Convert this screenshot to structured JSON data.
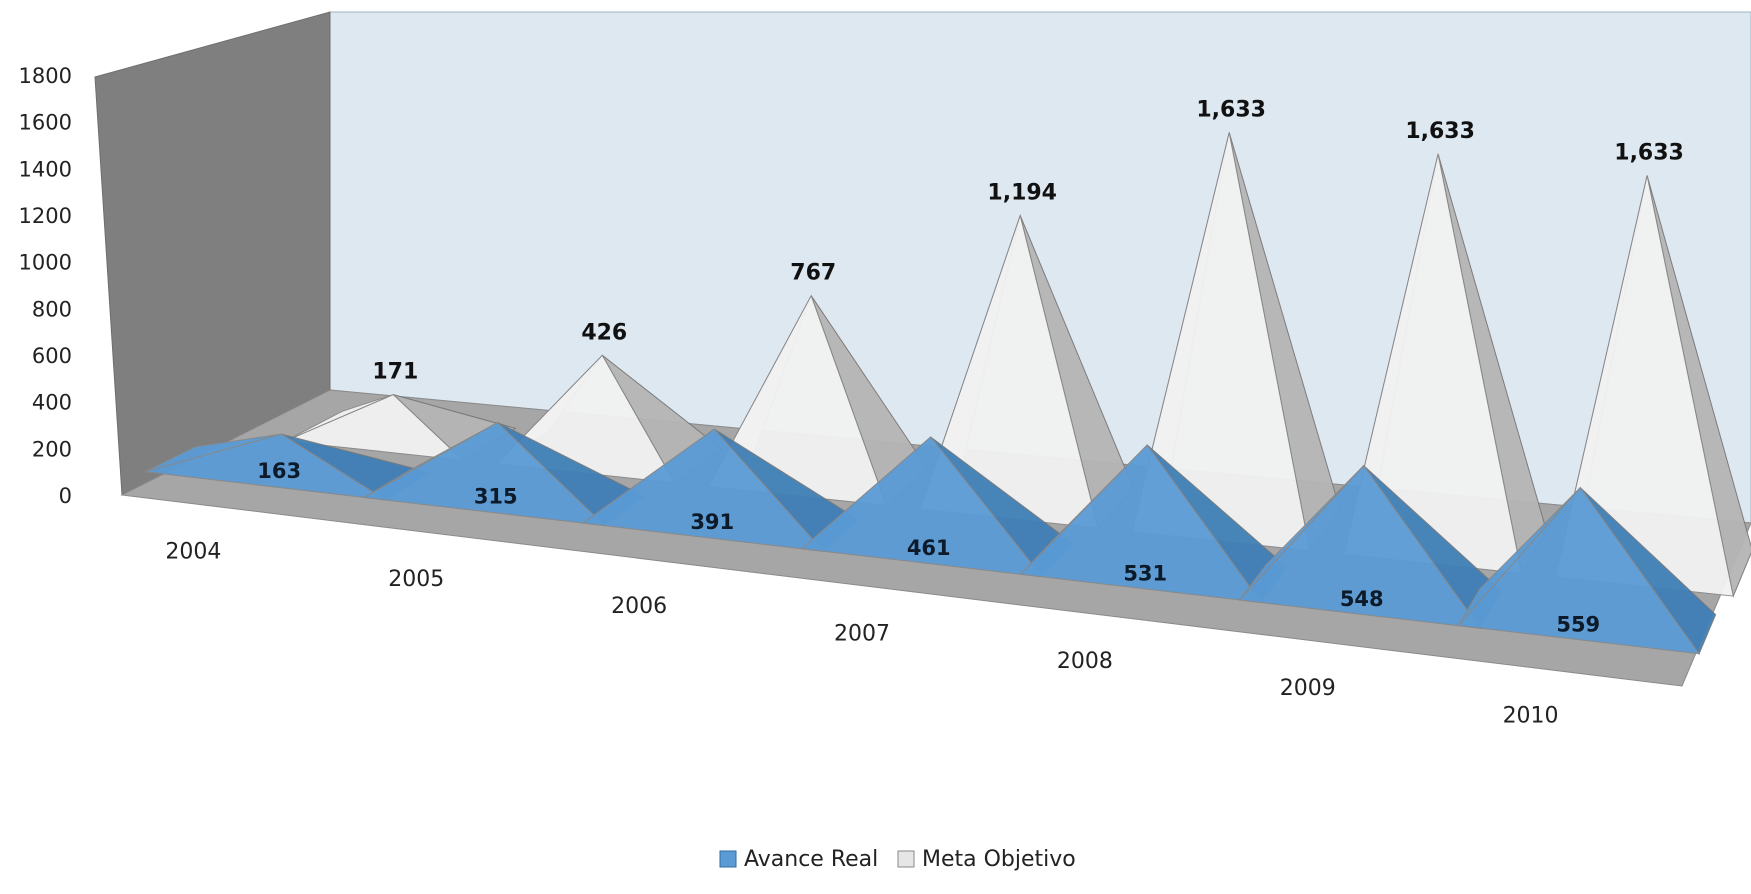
{
  "chart_data": {
    "type": "bar",
    "subtype": "3d-pyramid",
    "title": "",
    "xlabel": "",
    "ylabel": "",
    "ylim": [
      0,
      1800
    ],
    "yticks": [
      0,
      200,
      400,
      600,
      800,
      1000,
      1200,
      1400,
      1600,
      1800
    ],
    "categories": [
      "2004",
      "2005",
      "2006",
      "2007",
      "2008",
      "2009",
      "2010"
    ],
    "series": [
      {
        "name": "Avance Real",
        "values": [
          163,
          315,
          391,
          461,
          531,
          548,
          559
        ],
        "labels": [
          "163",
          "315",
          "391",
          "461",
          "531",
          "548",
          "559"
        ],
        "color": "#5b9bd5"
      },
      {
        "name": "Meta Objetivo",
        "values": [
          171,
          426,
          767,
          1194,
          1633,
          1633,
          1633
        ],
        "labels": [
          "171",
          "426",
          "767",
          "1,194",
          "1,633",
          "1,633",
          "1,633"
        ],
        "color": "#eeeeee"
      }
    ],
    "legend": "bottom",
    "grid": false
  },
  "colors": {
    "back_wall": "#dde8f1",
    "side_wall": "#7f7f7f",
    "floor": "#a6a6a6",
    "real_front": "#5b9bd5",
    "real_side": "#3f7fb6",
    "meta_front": "#f2f2f2",
    "meta_side": "#b5b5b5"
  }
}
